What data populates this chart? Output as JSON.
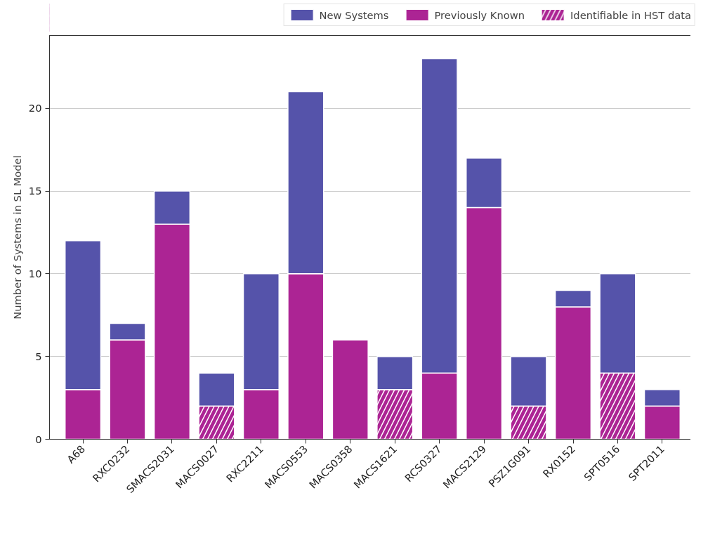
{
  "chart_data": {
    "type": "bar",
    "stacked": true,
    "ylabel": "Number of Systems in SL Model",
    "categories": [
      "A68",
      "RXC0232",
      "SMACS2031",
      "MACS0027",
      "RXC2211",
      "MACS0553",
      "MACS0358",
      "MACS1621",
      "RCS0327",
      "MACS2129",
      "PSZ1G091",
      "RX0152",
      "SPT0516",
      "SPT2011"
    ],
    "series": [
      {
        "name": "Previously Known",
        "color": "#ac2494",
        "values": [
          3,
          6,
          13,
          null,
          3,
          10,
          6,
          null,
          4,
          14,
          null,
          8,
          null,
          2
        ]
      },
      {
        "name": "Identifiable in HST data",
        "color": "#ac2494",
        "values": [
          null,
          null,
          null,
          2,
          null,
          null,
          null,
          3,
          null,
          null,
          2,
          null,
          4,
          null
        ]
      },
      {
        "name": "New Systems",
        "color": "#5553aa",
        "values": [
          9,
          1,
          2,
          2,
          7,
          11,
          null,
          2,
          19,
          3,
          3,
          1,
          6,
          1
        ]
      }
    ],
    "ylim": [
      0,
      24.4
    ],
    "yticks": [
      0,
      5,
      10,
      15,
      20
    ],
    "grid": "y",
    "legend": "top"
  }
}
